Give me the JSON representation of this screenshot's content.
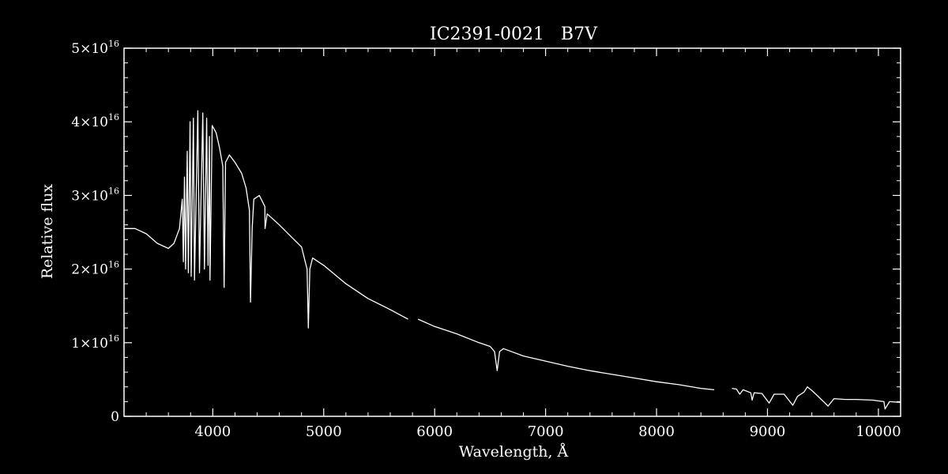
{
  "colors": {
    "background": "#000000",
    "foreground": "#ffffff"
  },
  "chart_data": {
    "type": "line",
    "title": "IC2391-0021   B7V",
    "xlabel": "Wavelength, Å",
    "ylabel": "Relative flux",
    "xlim": [
      3200,
      10200
    ],
    "ylim": [
      0,
      5e+16
    ],
    "x_ticks": [
      {
        "value": 4000,
        "label": "4000"
      },
      {
        "value": 5000,
        "label": "5000"
      },
      {
        "value": 6000,
        "label": "6000"
      },
      {
        "value": 7000,
        "label": "7000"
      },
      {
        "value": 8000,
        "label": "8000"
      },
      {
        "value": 9000,
        "label": "9000"
      },
      {
        "value": 10000,
        "label": "10000"
      }
    ],
    "y_ticks": [
      {
        "value": 0,
        "mantissa": "0",
        "exponent": ""
      },
      {
        "value": 1e+16,
        "mantissa": "1×10",
        "exponent": "16"
      },
      {
        "value": 2e+16,
        "mantissa": "2×10",
        "exponent": "16"
      },
      {
        "value": 3e+16,
        "mantissa": "3×10",
        "exponent": "16"
      },
      {
        "value": 4e+16,
        "mantissa": "4×10",
        "exponent": "16"
      },
      {
        "value": 5e+16,
        "mantissa": "5×10",
        "exponent": "16"
      }
    ],
    "grid": false,
    "series": [
      {
        "values_unit": "1e16",
        "segments": [
          [
            [
              3200,
              2.55
            ],
            [
              3300,
              2.55
            ],
            [
              3400,
              2.48
            ],
            [
              3500,
              2.35
            ],
            [
              3600,
              2.28
            ],
            [
              3650,
              2.35
            ],
            [
              3700,
              2.55
            ],
            [
              3725,
              2.95
            ],
            [
              3735,
              2.1
            ],
            [
              3745,
              3.25
            ],
            [
              3755,
              2.0
            ],
            [
              3770,
              3.6
            ],
            [
              3780,
              1.95
            ],
            [
              3795,
              4.0
            ],
            [
              3805,
              1.9
            ],
            [
              3825,
              4.05
            ],
            [
              3835,
              1.85
            ],
            [
              3865,
              4.15
            ],
            [
              3880,
              1.95
            ],
            [
              3910,
              4.12
            ],
            [
              3925,
              2.0
            ],
            [
              3945,
              4.05
            ],
            [
              3958,
              2.05
            ],
            [
              3970,
              3.8
            ],
            [
              3975,
              1.85
            ],
            [
              3995,
              3.95
            ],
            [
              4030,
              3.85
            ],
            [
              4060,
              3.65
            ],
            [
              4090,
              3.4
            ],
            [
              4102,
              1.75
            ],
            [
              4115,
              3.45
            ],
            [
              4150,
              3.55
            ],
            [
              4200,
              3.45
            ],
            [
              4260,
              3.3
            ],
            [
              4300,
              3.1
            ],
            [
              4330,
              2.8
            ],
            [
              4340,
              1.55
            ],
            [
              4355,
              2.55
            ],
            [
              4370,
              2.95
            ],
            [
              4420,
              3.0
            ],
            [
              4470,
              2.85
            ],
            [
              4471,
              2.55
            ],
            [
              4490,
              2.75
            ],
            [
              4600,
              2.6
            ],
            [
              4700,
              2.45
            ],
            [
              4800,
              2.3
            ],
            [
              4850,
              2.0
            ],
            [
              4861,
              1.2
            ],
            [
              4875,
              2.0
            ],
            [
              4900,
              2.15
            ],
            [
              5000,
              2.05
            ],
            [
              5200,
              1.8
            ],
            [
              5400,
              1.6
            ],
            [
              5600,
              1.45
            ],
            [
              5760,
              1.32
            ]
          ],
          [
            [
              5850,
              1.32
            ],
            [
              6000,
              1.22
            ],
            [
              6200,
              1.12
            ],
            [
              6400,
              1.0
            ],
            [
              6500,
              0.95
            ],
            [
              6540,
              0.88
            ],
            [
              6563,
              0.62
            ],
            [
              6585,
              0.88
            ],
            [
              6620,
              0.92
            ],
            [
              6800,
              0.82
            ],
            [
              7000,
              0.75
            ],
            [
              7200,
              0.68
            ],
            [
              7400,
              0.62
            ],
            [
              7600,
              0.57
            ],
            [
              7800,
              0.52
            ],
            [
              8000,
              0.47
            ],
            [
              8200,
              0.43
            ],
            [
              8400,
              0.38
            ],
            [
              8520,
              0.36
            ]
          ],
          [
            [
              8680,
              0.38
            ],
            [
              8720,
              0.37
            ],
            [
              8750,
              0.3
            ],
            [
              8780,
              0.36
            ],
            [
              8850,
              0.32
            ],
            [
              8862,
              0.22
            ],
            [
              8880,
              0.32
            ],
            [
              8950,
              0.31
            ],
            [
              9015,
              0.18
            ],
            [
              9060,
              0.3
            ],
            [
              9150,
              0.3
            ],
            [
              9229,
              0.15
            ],
            [
              9270,
              0.27
            ],
            [
              9330,
              0.33
            ],
            [
              9360,
              0.4
            ],
            [
              9400,
              0.35
            ],
            [
              9450,
              0.28
            ],
            [
              9546,
              0.14
            ],
            [
              9600,
              0.24
            ],
            [
              9700,
              0.23
            ],
            [
              9800,
              0.23
            ],
            [
              9950,
              0.22
            ],
            [
              10050,
              0.2
            ],
            [
              10060,
              0.1
            ],
            [
              10100,
              0.2
            ],
            [
              10200,
              0.19
            ]
          ]
        ]
      }
    ]
  }
}
